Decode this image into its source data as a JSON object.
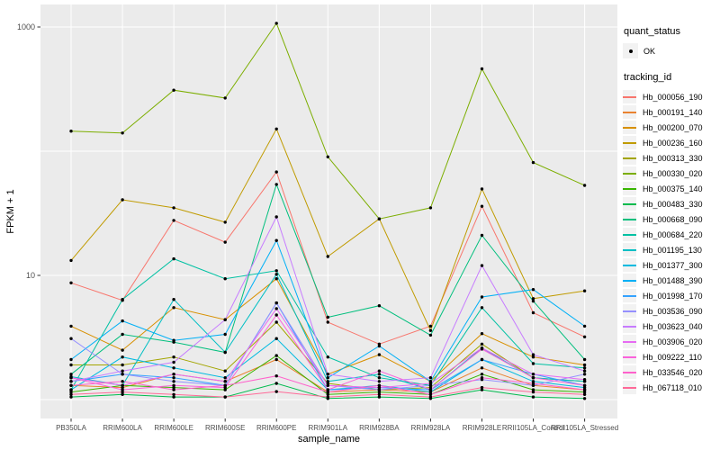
{
  "chart_data": {
    "type": "line",
    "title": "",
    "xlabel": "sample_name",
    "ylabel": "FPKM + 1",
    "y_scale": "log10",
    "ylim": [
      1,
      1200
    ],
    "y_ticks": [
      {
        "value": 1000,
        "label": "1000"
      },
      {
        "value": 10,
        "label": "10"
      }
    ],
    "gridlines": {
      "major_y_values": [
        1,
        10,
        100,
        1000
      ],
      "vertical_per_category": true,
      "color": "#FFFFFF"
    },
    "panel_background": "#EBEBEB",
    "point_color": "#000000",
    "tick_text_color": "#4D4D4D",
    "legend_position": "right",
    "categories": [
      "PB350LA",
      "RRIM600LA",
      "RRIM600LE",
      "RRIM600SE",
      "RRIM600PE",
      "RRIM901LA",
      "RRIM928BA",
      "RRIM928LA",
      "RRIM928LE",
      "RRII105LA_Control",
      "RRII105LA_Stressed"
    ],
    "legend": {
      "quant_status_title": "quant_status",
      "quant_status_value": "OK",
      "tracking_id_title": "tracking_id"
    },
    "series": [
      {
        "name": "Hb_000056_190",
        "color": "#F8766D",
        "values": [
          8.7,
          6.3,
          27.7,
          18.5,
          68,
          4.2,
          2.8,
          3.9,
          36,
          5.0,
          3.2
        ]
      },
      {
        "name": "Hb_000191_140",
        "color": "#EA8331",
        "values": [
          1.3,
          1.25,
          1.6,
          1.4,
          2.1,
          1.15,
          1.2,
          1.15,
          1.8,
          1.3,
          1.2
        ]
      },
      {
        "name": "Hb_000200_070",
        "color": "#D89000",
        "values": [
          3.9,
          2.5,
          5.5,
          4.4,
          9.4,
          1.6,
          2.3,
          1.4,
          3.4,
          2.2,
          1.9
        ]
      },
      {
        "name": "Hb_000236_160",
        "color": "#C09B00",
        "values": [
          13.2,
          40.6,
          35,
          26.8,
          151,
          14.2,
          28.5,
          3.6,
          49.6,
          6.5,
          7.5
        ]
      },
      {
        "name": "Hb_000313_330",
        "color": "#A3A500",
        "values": [
          1.9,
          1.9,
          2.2,
          1.7,
          4.2,
          1.35,
          1.2,
          1.25,
          2.8,
          1.5,
          1.4
        ]
      },
      {
        "name": "Hb_000330_020",
        "color": "#7CAE00",
        "values": [
          145,
          140,
          310,
          268,
          1070,
          90,
          28.5,
          35,
          460,
          81,
          53
        ]
      },
      {
        "name": "Hb_000375_140",
        "color": "#39B600",
        "values": [
          1.15,
          1.3,
          1.25,
          1.2,
          2.26,
          1.1,
          1.15,
          1.1,
          1.6,
          1.2,
          1.15
        ]
      },
      {
        "name": "Hb_000483_330",
        "color": "#00BB4E",
        "values": [
          1.05,
          1.1,
          1.05,
          1.05,
          1.35,
          1.02,
          1.05,
          1.02,
          1.2,
          1.05,
          1.02
        ]
      },
      {
        "name": "Hb_000668_090",
        "color": "#00BF7D",
        "values": [
          1.6,
          3.35,
          2.9,
          2.4,
          54,
          4.6,
          5.7,
          3.3,
          21,
          6.2,
          2.1
        ]
      },
      {
        "name": "Hb_000684_220",
        "color": "#00C1A3",
        "values": [
          1.2,
          6.4,
          13.6,
          9.4,
          10.9,
          2.2,
          1.5,
          1.3,
          5.5,
          1.95,
          1.8
        ]
      },
      {
        "name": "Hb_001195_130",
        "color": "#00BFC4",
        "values": [
          1.53,
          1.3,
          6.4,
          2.4,
          10.2,
          1.4,
          1.6,
          1.2,
          2.6,
          1.5,
          1.4
        ]
      },
      {
        "name": "Hb_001377_300",
        "color": "#00BAE0",
        "values": [
          1.2,
          2.2,
          1.8,
          1.5,
          3.1,
          1.2,
          1.3,
          1.15,
          2.1,
          1.4,
          1.25
        ]
      },
      {
        "name": "Hb_001488_390",
        "color": "#00B0F6",
        "values": [
          2.1,
          4.3,
          3.0,
          3.35,
          19.1,
          1.5,
          2.7,
          1.4,
          6.7,
          7.7,
          3.9
        ]
      },
      {
        "name": "Hb_001998_170",
        "color": "#35A2FF",
        "values": [
          1.4,
          1.6,
          1.5,
          1.3,
          6.0,
          1.2,
          1.25,
          1.2,
          2.1,
          1.6,
          1.3
        ]
      },
      {
        "name": "Hb_003536_090",
        "color": "#9590FF",
        "values": [
          3.1,
          1.6,
          1.4,
          1.3,
          6.0,
          1.3,
          1.2,
          1.3,
          1.45,
          1.3,
          1.6
        ]
      },
      {
        "name": "Hb_003623_040",
        "color": "#C77CFF",
        "values": [
          1.4,
          1.7,
          2.0,
          4.4,
          29.6,
          1.6,
          1.4,
          1.5,
          12,
          2.3,
          1.7
        ]
      },
      {
        "name": "Hb_003906_020",
        "color": "#E76BF3",
        "values": [
          1.5,
          1.3,
          1.6,
          1.4,
          5.4,
          1.3,
          1.25,
          1.35,
          2.6,
          1.6,
          1.45
        ]
      },
      {
        "name": "Hb_009222_110",
        "color": "#FA62DB",
        "values": [
          1.5,
          1.2,
          1.3,
          1.25,
          4.8,
          1.2,
          1.7,
          1.2,
          2.55,
          1.5,
          1.3
        ]
      },
      {
        "name": "Hb_033546_020",
        "color": "#FF61CC",
        "values": [
          1.3,
          1.4,
          1.2,
          1.3,
          1.55,
          1.15,
          1.3,
          1.1,
          1.5,
          1.35,
          1.2
        ]
      },
      {
        "name": "Hb_067118_010",
        "color": "#FF6A98",
        "values": [
          1.1,
          1.15,
          1.1,
          1.05,
          1.16,
          1.05,
          1.1,
          1.05,
          1.25,
          1.15,
          1.1
        ]
      }
    ]
  }
}
